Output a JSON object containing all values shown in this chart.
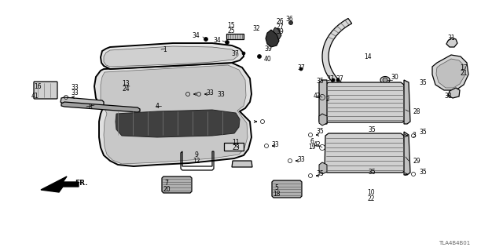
{
  "bg": "#ffffff",
  "figsize": [
    6.4,
    3.2
  ],
  "dpi": 100,
  "watermark": "TLA4B4B01"
}
